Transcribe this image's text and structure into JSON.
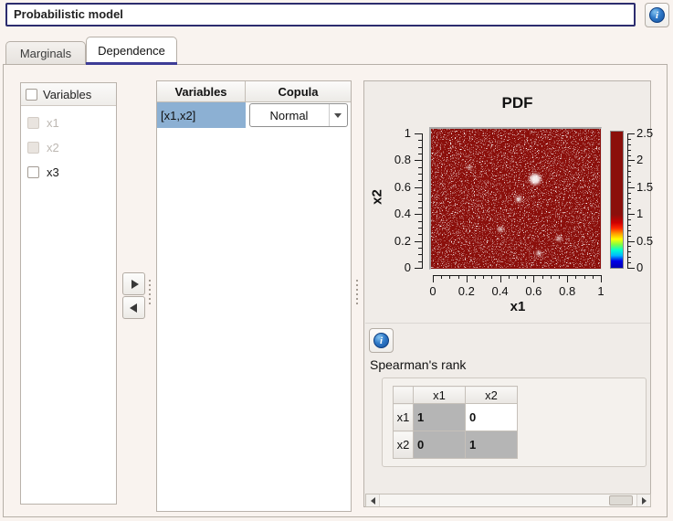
{
  "window": {
    "title": "Probabilistic model"
  },
  "icons": {
    "info": "i"
  },
  "tabs": {
    "marginals": "Marginals",
    "dependence": "Dependence",
    "active": "Dependence"
  },
  "variables_panel": {
    "header": "Variables",
    "items": [
      {
        "label": "x1",
        "enabled": false
      },
      {
        "label": "x2",
        "enabled": false
      },
      {
        "label": "x3",
        "enabled": true
      }
    ]
  },
  "copula_table": {
    "col_variables": "Variables",
    "col_copula": "Copula",
    "row": {
      "variables": "[x1,x2]",
      "copula": "Normal"
    }
  },
  "chart_data": {
    "type": "heatmap",
    "title": "PDF",
    "xlabel": "x1",
    "ylabel": "x2",
    "xlim": [
      0,
      1
    ],
    "ylim": [
      0,
      1
    ],
    "xticks": [
      "0",
      "0.2",
      "0.4",
      "0.6",
      "0.8",
      "1"
    ],
    "yticks": [
      "0",
      "0.2",
      "0.4",
      "0.6",
      "0.8",
      "1"
    ],
    "colorbar_ticks": [
      "0",
      "0.5",
      "1",
      "1.5",
      "2",
      "2.5"
    ],
    "colorbar_range": [
      0,
      2.5
    ],
    "dominant_value": 1,
    "note": "near-uniform copula density of about 1 over the unit square, rendered dark red with white speckle noise",
    "palette_low_to_high": [
      "#0000b0",
      "#00b8ff",
      "#00ffd0",
      "#7dff45",
      "#fdff00",
      "#ffa000",
      "#ff2a00",
      "#8b0f0b"
    ]
  },
  "spearman": {
    "title": "Spearman's rank",
    "columns": [
      "x1",
      "x2"
    ],
    "rows": [
      {
        "header": "x1",
        "cells": [
          "1",
          "0"
        ]
      },
      {
        "header": "x2",
        "cells": [
          "0",
          "1"
        ]
      }
    ]
  },
  "colors": {
    "title_border": "#2c2c6e",
    "tab_underline": "#3d3c96",
    "selection_blue": "#8cb0d3",
    "heatmap_red": "#8b0f0b",
    "readonly_cell_gray": "#b5b5b5",
    "info_blue": "#2f79c8",
    "background": "#f9f3ef"
  }
}
